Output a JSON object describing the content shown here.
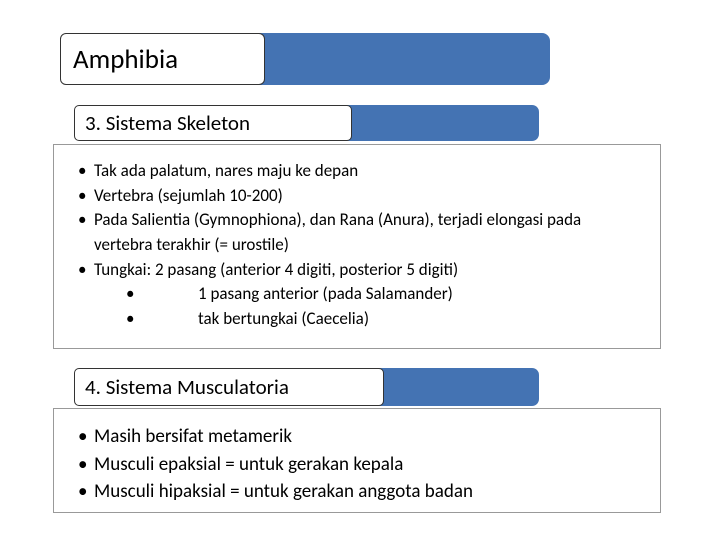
{
  "title": "Amphibia",
  "section1": {
    "heading": "3. Sistema Skeleton",
    "bullets": [
      "Tak ada palatum, nares maju ke depan",
      "Vertebra (sejumlah 10-200)",
      "Pada Salientia (Gymnophiona), dan Rana (Anura), terjadi elongasi pada vertebra terakhir (= urostile)",
      "Tungkai: 2 pasang (anterior 4 digiti, posterior 5 digiti)"
    ],
    "subbullets": [
      "1 pasang anterior (pada Salamander)",
      "tak bertungkai (Caecelia)"
    ]
  },
  "section2": {
    "heading": "4. Sistema Musculatoria",
    "bullets": [
      "Masih bersifat metamerik",
      "Musculi epaksial = untuk gerakan kepala",
      "Musculi hipaksial = untuk gerakan anggota badan"
    ]
  },
  "colors": {
    "bar": "#4473b3",
    "box_bg": "#ffffff",
    "box_border": "#333333",
    "frame_border": "#999999",
    "text": "#000000"
  }
}
